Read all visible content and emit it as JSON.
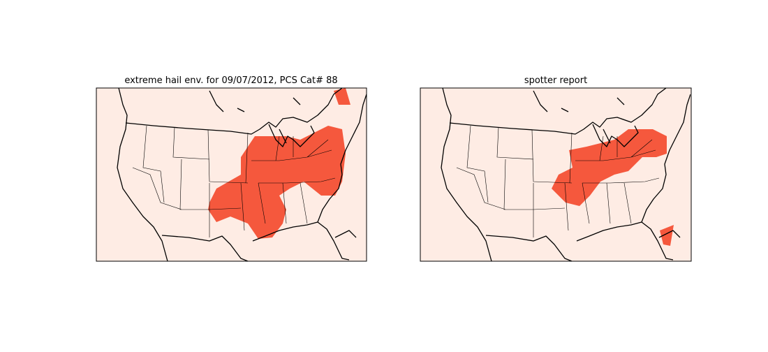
{
  "panels": [
    {
      "title": "extreme hail env. for 09/07/2012, PCS Cat# 88"
    },
    {
      "title": "spotter report"
    }
  ]
}
